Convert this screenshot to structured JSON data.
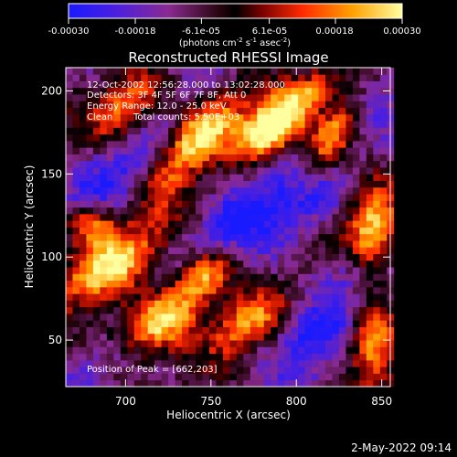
{
  "colorbar": {
    "tick_labels": [
      "-0.00030",
      "-0.00018",
      "-6.1e-05",
      "6.1e-05",
      "0.00018",
      "0.00030"
    ],
    "ticks": [
      -0.0003,
      -0.00018,
      -6.1e-05,
      6.1e-05,
      0.00018,
      0.0003
    ],
    "range": [
      -0.0003,
      0.0003
    ],
    "units_main": "(photons cm",
    "units_sup1": "-2",
    "units_mid": " s",
    "units_sup2": "-1",
    "units_end": " asec",
    "units_sup3": "-2",
    "units_close": ")",
    "colors": [
      "#1a1aff",
      "#6a1fd0",
      "#8a2a80",
      "#000000",
      "#b00000",
      "#ff3000",
      "#ff9a00",
      "#ffff80"
    ]
  },
  "annotations": {
    "line1": "12-Oct-2002 12:56:28.000 to 13:02:28.000",
    "line2": "Detectors: 3F 4F 5F 6F 7F 8F, Att 0",
    "line3": "Energy Range: 12.0 - 25.0 keV",
    "line4_a": "Clean",
    "line4_b": "Total counts: 5.50E+03",
    "peak": "Position of Peak = [662,203]"
  },
  "footer": {
    "date": "2-May-2022 09:14"
  },
  "chart_data": {
    "type": "heatmap",
    "title": "Reconstructed RHESSI Image",
    "xlabel": "Heliocentric X (arcsec)",
    "ylabel": "Heliocentric Y (arcsec)",
    "xlim": [
      665,
      855
    ],
    "ylim": [
      22,
      214
    ],
    "x_ticks": [
      700,
      750,
      800,
      850
    ],
    "y_ticks": [
      50,
      100,
      150,
      200
    ],
    "colorbar_range": [
      -0.0003,
      0.0003
    ],
    "grid": false,
    "features": [
      {
        "x": 718,
        "y": 60,
        "level": 0.95,
        "sx": 22,
        "sy": 12,
        "angle": -35
      },
      {
        "x": 690,
        "y": 95,
        "level": 0.7,
        "sx": 26,
        "sy": 12,
        "angle": -30
      },
      {
        "x": 745,
        "y": 90,
        "level": 0.75,
        "sx": 14,
        "sy": 10,
        "angle": -40
      },
      {
        "x": 740,
        "y": 170,
        "level": 0.85,
        "sx": 30,
        "sy": 10,
        "angle": -50
      },
      {
        "x": 785,
        "y": 175,
        "level": 0.9,
        "sx": 14,
        "sy": 10,
        "angle": -20
      },
      {
        "x": 820,
        "y": 170,
        "level": 0.7,
        "sx": 20,
        "sy": 8,
        "angle": -60
      },
      {
        "x": 845,
        "y": 115,
        "level": 0.75,
        "sx": 10,
        "sy": 18,
        "angle": 0
      },
      {
        "x": 845,
        "y": 50,
        "level": 0.7,
        "sx": 10,
        "sy": 16,
        "angle": 0
      },
      {
        "x": 770,
        "y": 60,
        "level": 0.5,
        "sx": 16,
        "sy": 10,
        "angle": -40
      },
      {
        "x": 680,
        "y": 120,
        "level": 0.5,
        "sx": 10,
        "sy": 8,
        "angle": 0
      },
      {
        "x": 700,
        "y": 190,
        "level": 0.55,
        "sx": 16,
        "sy": 10,
        "angle": -40
      },
      {
        "x": 800,
        "y": 195,
        "level": 0.45,
        "sx": 20,
        "sy": 8,
        "angle": -30
      },
      {
        "x": 760,
        "y": 120,
        "level": -0.75,
        "sx": 40,
        "sy": 10,
        "angle": -40
      },
      {
        "x": 810,
        "y": 55,
        "level": -0.85,
        "sx": 14,
        "sy": 10,
        "angle": -35
      },
      {
        "x": 805,
        "y": 130,
        "level": -0.6,
        "sx": 20,
        "sy": 10,
        "angle": -40
      },
      {
        "x": 700,
        "y": 150,
        "level": -0.55,
        "sx": 20,
        "sy": 12,
        "angle": -30
      },
      {
        "x": 830,
        "y": 90,
        "level": -0.5,
        "sx": 14,
        "sy": 10,
        "angle": -30
      },
      {
        "x": 690,
        "y": 40,
        "level": -0.4,
        "sx": 20,
        "sy": 8,
        "angle": -30
      }
    ]
  }
}
